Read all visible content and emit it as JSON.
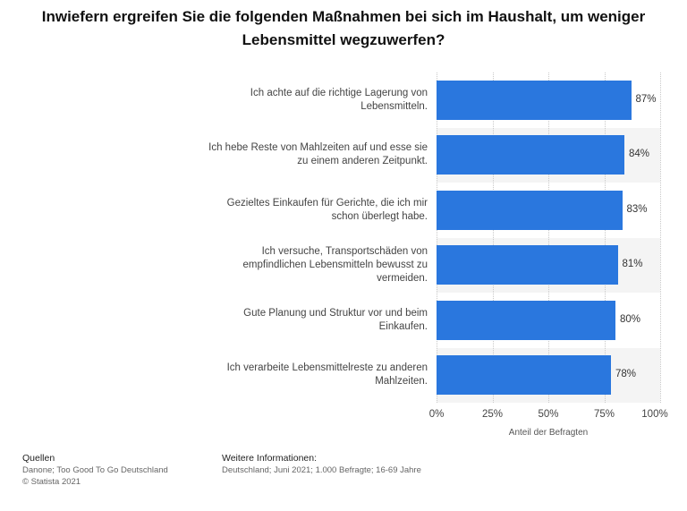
{
  "chart_data": {
    "type": "bar",
    "orientation": "horizontal",
    "title": "Inwiefern ergreifen Sie die folgenden Maßnahmen bei sich im Haushalt, um weniger Lebensmittel wegzuwerfen?",
    "categories": [
      "Ich achte auf die richtige Lagerung von Lebensmitteln.",
      "Ich hebe Reste von Mahlzeiten auf und esse sie zu einem anderen Zeitpunkt.",
      "Gezieltes Einkaufen für Gerichte, die ich mir schon überlegt habe.",
      "Ich versuche, Transportschäden von empfindlichen Lebensmitteln bewusst zu vermeiden.",
      "Gute Planung und Struktur vor und beim Einkaufen.",
      "Ich verarbeite Lebensmittelreste zu anderen Mahlzeiten."
    ],
    "category_lines": [
      [
        "Ich achte auf die richtige Lagerung von",
        "Lebensmitteln."
      ],
      [
        "Ich hebe Reste von Mahlzeiten auf und esse sie",
        "zu einem anderen Zeitpunkt."
      ],
      [
        "Gezieltes Einkaufen für Gerichte, die ich mir",
        "schon überlegt habe."
      ],
      [
        "Ich versuche, Transportschäden von",
        "empfindlichen Lebensmitteln bewusst zu",
        "vermeiden."
      ],
      [
        "Gute Planung und Struktur vor und beim",
        "Einkaufen."
      ],
      [
        "Ich verarbeite Lebensmittelreste zu anderen",
        "Mahlzeiten."
      ]
    ],
    "values": [
      87,
      84,
      83,
      81,
      80,
      78
    ],
    "value_labels": [
      "87%",
      "84%",
      "83%",
      "81%",
      "80%",
      "78%"
    ],
    "xlabel": "Anteil der Befragten",
    "ylabel": "",
    "xlim": [
      0,
      100
    ],
    "xticks": [
      0,
      25,
      50,
      75,
      100
    ],
    "xtick_labels": [
      "0%",
      "25%",
      "50%",
      "75%",
      "100%"
    ],
    "bar_color": "#2a77de",
    "grid": true,
    "legend": "none"
  },
  "footer": {
    "sources_heading": "Quellen",
    "sources_lines": [
      "Danone; Too Good To Go Deutschland",
      "© Statista 2021"
    ],
    "info_heading": "Weitere Informationen:",
    "info_text": "Deutschland; Juni 2021; 1.000 Befragte; 16-69 Jahre"
  }
}
